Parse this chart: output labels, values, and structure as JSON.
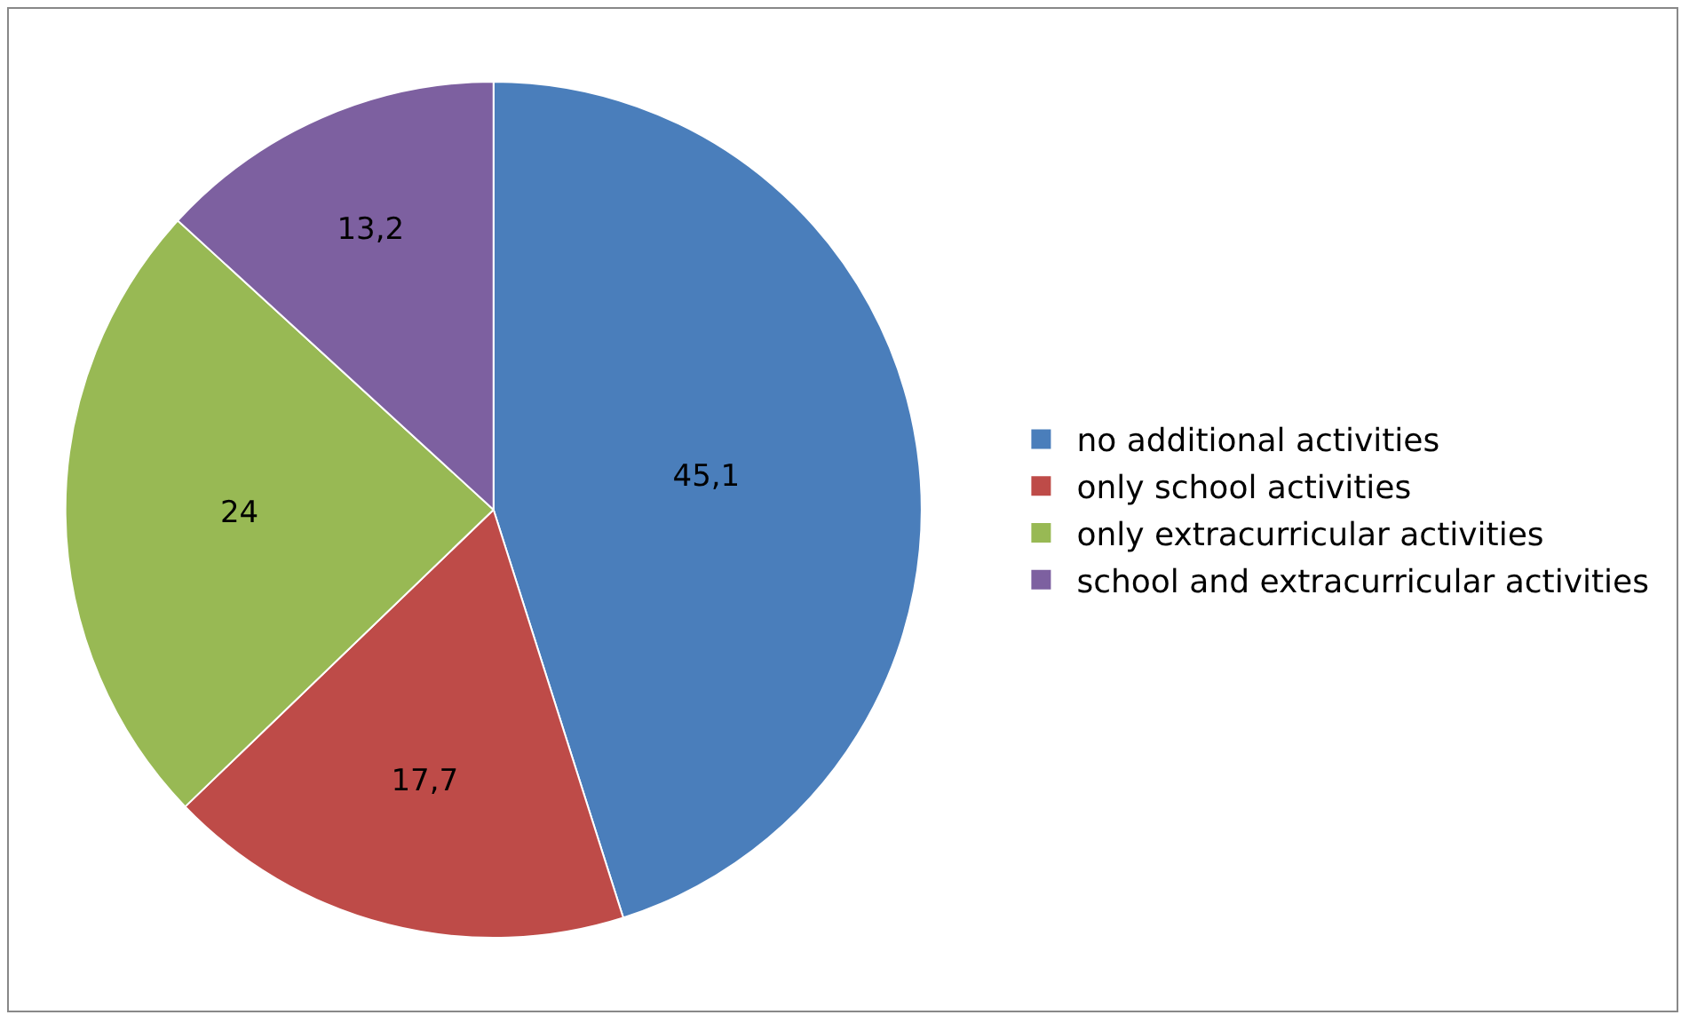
{
  "chart_data": {
    "type": "pie",
    "categories": [
      "no additional activities",
      "only school activities",
      "only extracurricular activities",
      "school and extracurricular activities"
    ],
    "values": [
      45.1,
      17.7,
      24,
      13.2
    ],
    "value_labels": [
      "45,1",
      "17,7",
      "24",
      "13,2"
    ],
    "colors": [
      "#4a7ebb",
      "#be4b48",
      "#98b954",
      "#7d60a0"
    ],
    "legend": "right"
  }
}
